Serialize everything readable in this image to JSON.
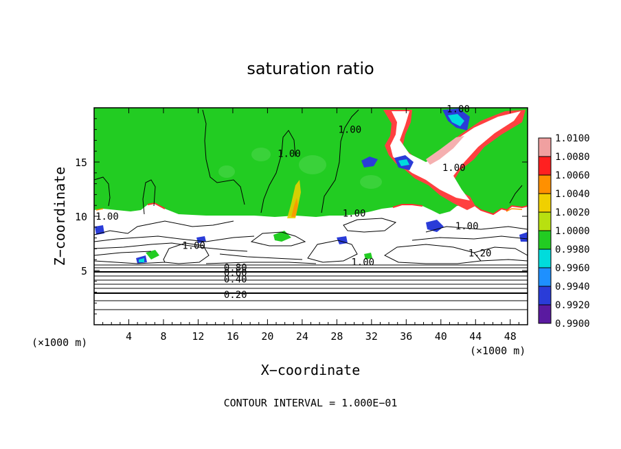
{
  "chart_data": {
    "type": "heatmap",
    "title": "saturation ratio",
    "xlabel": "X−coordinate",
    "ylabel": "Z−coordinate",
    "x_unit_left": "(×1000 m)",
    "x_unit_right": "(×1000 m)",
    "xlim": [
      0,
      50
    ],
    "ylim": [
      0,
      20
    ],
    "x_ticks": [
      4,
      8,
      12,
      16,
      20,
      24,
      28,
      32,
      36,
      40,
      44,
      48
    ],
    "x_tick_labels": [
      "4",
      "8",
      "12",
      "16",
      "20",
      "24",
      "28",
      "32",
      "36",
      "40",
      "44",
      "48"
    ],
    "y_ticks": [
      5,
      10,
      15
    ],
    "y_tick_labels": [
      "5",
      "10",
      "15"
    ],
    "footer": "CONTOUR INTERVAL = 1.000E−01",
    "colorbar": {
      "levels": [
        0.99,
        0.992,
        0.994,
        0.996,
        0.998,
        1.0,
        1.002,
        1.004,
        1.006,
        1.008,
        1.01
      ],
      "tick_labels": [
        "0.9900",
        "0.9920",
        "0.9940",
        "0.9960",
        "0.9980",
        "1.0000",
        "1.0020",
        "1.0040",
        "1.0060",
        "1.0080",
        "1.0100"
      ],
      "colors": [
        "#5a1aa0",
        "#1a1ab0",
        "#2a3cd8",
        "#1e90ff",
        "#00dcdc",
        "#22cc22",
        "#b8e010",
        "#f0d000",
        "#ff9000",
        "#ff2020",
        "#f0a0a0"
      ]
    },
    "contour_labels": [
      {
        "text": "1.00",
        "x": 1.5,
        "z": 10.0
      },
      {
        "text": "1.00",
        "x": 22.5,
        "z": 15.8
      },
      {
        "text": "1.00",
        "x": 29.5,
        "z": 18.0
      },
      {
        "text": "1.00",
        "x": 42.0,
        "z": 19.9
      },
      {
        "text": "1.00",
        "x": 41.5,
        "z": 14.5
      },
      {
        "text": "1.00",
        "x": 30.0,
        "z": 10.3
      },
      {
        "text": "1.00",
        "x": 43.0,
        "z": 9.1
      },
      {
        "text": "1.00",
        "x": 11.5,
        "z": 7.3
      },
      {
        "text": "1.00",
        "x": 31.0,
        "z": 5.8
      },
      {
        "text": "1.20",
        "x": 44.5,
        "z": 6.6
      },
      {
        "text": "0.80",
        "x": 16.3,
        "z": 5.3
      },
      {
        "text": "0.60",
        "x": 16.3,
        "z": 4.8
      },
      {
        "text": "0.40",
        "x": 16.3,
        "z": 4.2
      },
      {
        "text": "0.20",
        "x": 16.3,
        "z": 2.8
      }
    ]
  }
}
